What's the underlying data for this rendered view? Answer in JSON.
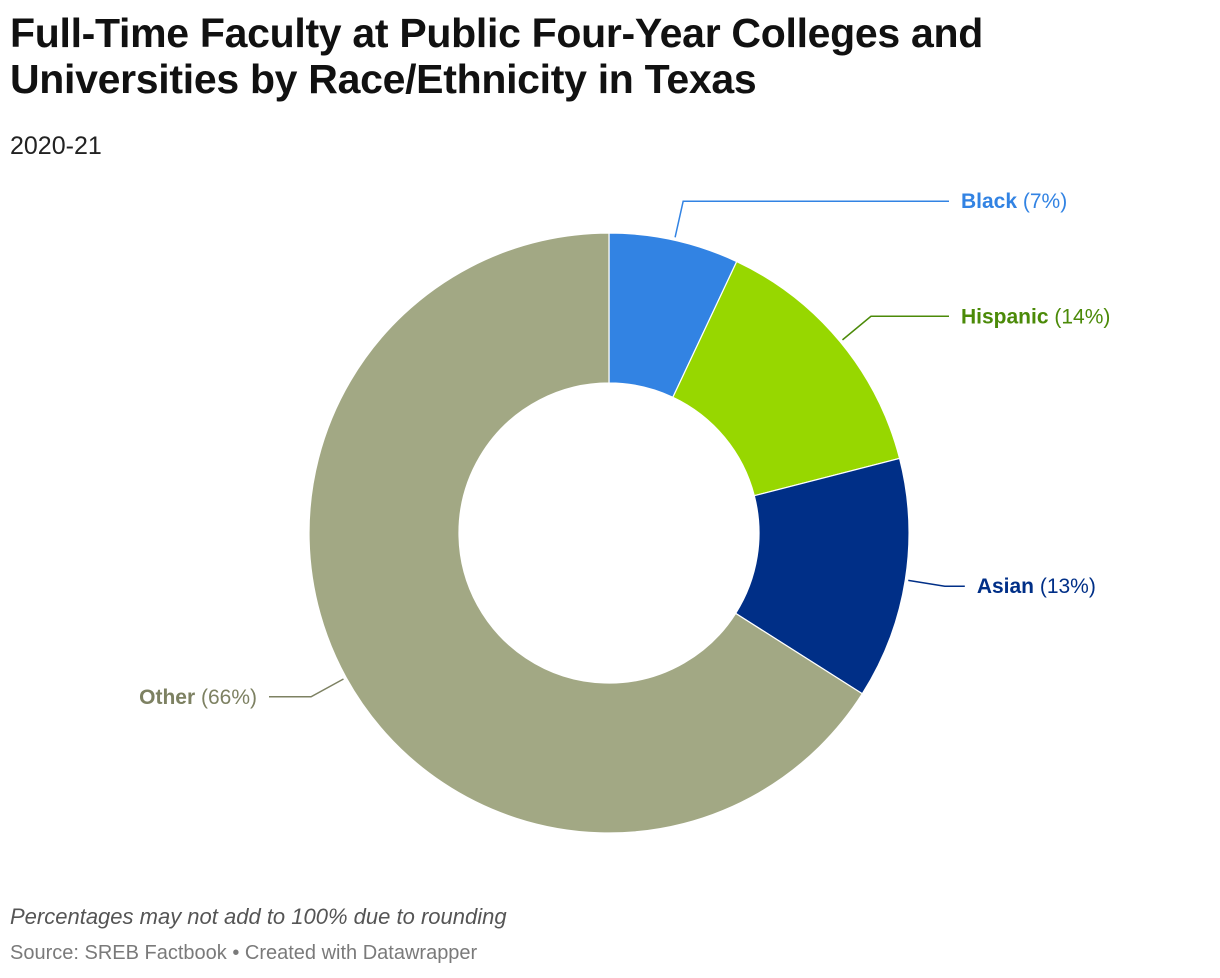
{
  "header": {
    "title": "Full-Time Faculty at Public Four-Year Colleges and Universities by Race/Ethnicity in Texas",
    "subtitle": "2020-21"
  },
  "footer": {
    "note": "Percentages may not add to 100% due to rounding",
    "source": "Source: SREB Factbook • Created with Datawrapper"
  },
  "chart_data": {
    "type": "pie",
    "variant": "donut",
    "title": "Full-Time Faculty at Public Four-Year Colleges and Universities by Race/Ethnicity in Texas",
    "subtitle": "2020-21",
    "unit": "%",
    "slices": [
      {
        "name": "Black",
        "value": 7,
        "label": "(7%)",
        "color": "#3283e3",
        "label_color": "#3283e3",
        "label_side": "right"
      },
      {
        "name": "Hispanic",
        "value": 14,
        "label": "(14%)",
        "color": "#97d700",
        "label_color": "#4b8a08",
        "label_side": "right"
      },
      {
        "name": "Asian",
        "value": 13,
        "label": "(13%)",
        "color": "#002f87",
        "label_color": "#002f87",
        "label_side": "right"
      },
      {
        "name": "Other",
        "value": 66,
        "label": "(66%)",
        "color": "#a2a884",
        "label_color": "#7d8162",
        "label_side": "left"
      }
    ]
  }
}
